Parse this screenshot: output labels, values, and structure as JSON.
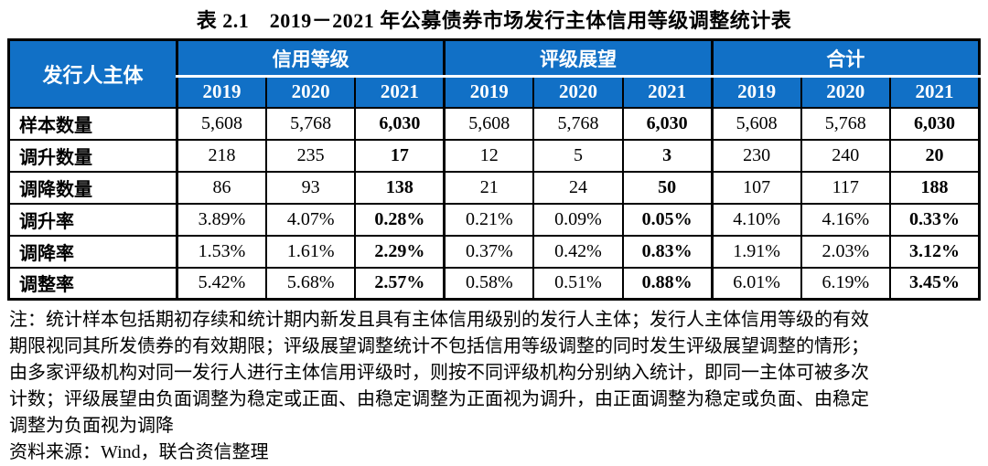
{
  "title": "表 2.1　2019－2021 年公募债券市场发行主体信用等级调整统计表",
  "colors": {
    "header_bg": "#1170C6",
    "header_text": "#FFFFFF",
    "border": "#000000",
    "page_bg": "#FFFFFF"
  },
  "table": {
    "corner_label": "发行人主体",
    "groups": [
      {
        "label": "信用等级",
        "years": [
          "2019",
          "2020",
          "2021"
        ]
      },
      {
        "label": "评级展望",
        "years": [
          "2019",
          "2020",
          "2021"
        ]
      },
      {
        "label": "合计",
        "years": [
          "2019",
          "2020",
          "2021"
        ]
      }
    ],
    "rows": [
      {
        "label": "样本数量",
        "values": [
          "5,608",
          "5,768",
          "6,030",
          "5,608",
          "5,768",
          "6,030",
          "5,608",
          "5,768",
          "6,030"
        ]
      },
      {
        "label": "调升数量",
        "values": [
          "218",
          "235",
          "17",
          "12",
          "5",
          "3",
          "230",
          "240",
          "20"
        ]
      },
      {
        "label": "调降数量",
        "values": [
          "86",
          "93",
          "138",
          "21",
          "24",
          "50",
          "107",
          "117",
          "188"
        ]
      },
      {
        "label": "调升率",
        "values": [
          "3.89%",
          "4.07%",
          "0.28%",
          "0.21%",
          "0.09%",
          "0.05%",
          "4.10%",
          "4.16%",
          "0.33%"
        ]
      },
      {
        "label": "调降率",
        "values": [
          "1.53%",
          "1.61%",
          "2.29%",
          "0.37%",
          "0.42%",
          "0.83%",
          "1.91%",
          "2.03%",
          "3.12%"
        ]
      },
      {
        "label": "调整率",
        "values": [
          "5.42%",
          "5.68%",
          "2.57%",
          "0.58%",
          "0.51%",
          "0.88%",
          "6.01%",
          "6.19%",
          "3.45%"
        ]
      }
    ],
    "bold_year": "2021"
  },
  "notes": {
    "lines": [
      "注：统计样本包括期初存续和统计期内新发且具有主体信用级别的发行人主体；发行人主体信用等级的有效",
      "期限视同其所发债券的有效期限；评级展望调整统计不包括信用等级调整的同时发生评级展望调整的情形；",
      "由多家评级机构对同一发行人进行主体信用评级时，则按不同评级机构分别纳入统计，即同一主体可被多次",
      "计数；评级展望由负面调整为稳定或正面、由稳定调整为正面视为调升，由正面调整为稳定或负面、由稳定",
      "调整为负面视为调降"
    ],
    "source": "资料来源：Wind，联合资信整理"
  }
}
